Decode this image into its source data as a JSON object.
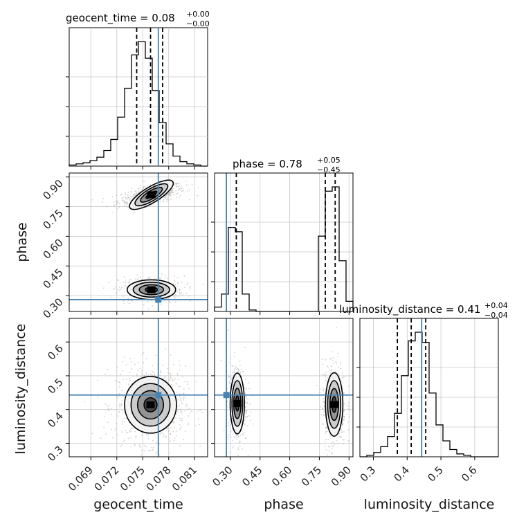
{
  "chart_data": {
    "type": "corner",
    "colors": {
      "truth": "#4682b4",
      "line": "#000000",
      "grid": "#c8c8c8",
      "samples": "#9a9a9a"
    },
    "parameters": [
      {
        "name": "geocent_time",
        "label": "geocent_time",
        "range": [
          0.0665,
          0.0825
        ],
        "ticks": [
          0.069,
          0.072,
          0.075,
          0.078,
          0.081
        ],
        "tick_labels": [
          "0.069",
          "0.072",
          "0.075",
          "0.078",
          "0.081"
        ],
        "truth": 0.0768,
        "title": {
          "text": "geocent_time = 0.08",
          "sup": "+0.00",
          "sub": "−0.00"
        },
        "quantiles": [
          0.0743,
          0.0759,
          0.0773
        ],
        "histogram": {
          "edges_start": 0.0665,
          "bin_width": 0.0008,
          "counts": [
            1,
            2,
            3,
            5,
            8,
            14,
            24,
            44,
            70,
            100,
            112,
            97,
            68,
            39,
            20,
            9,
            4,
            2,
            1,
            0
          ]
        }
      },
      {
        "name": "phase",
        "label": "phase",
        "range": [
          0.22,
          0.92
        ],
        "ticks": [
          0.3,
          0.45,
          0.6,
          0.75,
          0.9
        ],
        "tick_labels": [
          "0.30",
          "0.45",
          "0.60",
          "0.75",
          "0.90"
        ],
        "truth": 0.28,
        "title": {
          "text": "phase = 0.78",
          "sup": "+0.05",
          "sub": "−0.45"
        },
        "quantiles": [
          0.33,
          0.78,
          0.83
        ],
        "histogram": {
          "edges_start": 0.22,
          "bin_width": 0.035,
          "counts": [
            3,
            12,
            58,
            55,
            12,
            1,
            0,
            0,
            0,
            0,
            0,
            0,
            0,
            0,
            0,
            52,
            83,
            86,
            35,
            7
          ]
        }
      },
      {
        "name": "luminosity_distance",
        "label": "luminosity_distance",
        "range": [
          0.26,
          0.67
        ],
        "ticks": [
          0.3,
          0.4,
          0.5,
          0.6
        ],
        "tick_labels": [
          "0.3",
          "0.4",
          "0.5",
          "0.6"
        ],
        "truth": 0.443,
        "title": {
          "text": "luminosity_distance = 0.41",
          "sup": "+0.04",
          "sub": "−0.04"
        },
        "quantiles": [
          0.371,
          0.412,
          0.455
        ],
        "histogram": {
          "edges_start": 0.26,
          "bin_width": 0.0205,
          "counts": [
            0,
            1,
            3,
            7,
            14,
            30,
            56,
            80,
            86,
            79,
            44,
            22,
            11,
            5,
            2,
            1,
            0,
            0,
            0,
            0
          ]
        }
      }
    ],
    "pair_ticks": {
      "phase": [
        "0.90",
        "0.75",
        "0.60",
        "0.45",
        "0.30"
      ],
      "luminosity_distance": [
        "0.6",
        "0.5",
        "0.4",
        "0.3"
      ]
    },
    "blobs": [
      {
        "pair": "geocent_time|phase",
        "cx": 0.076,
        "cy": 0.81,
        "sx": 0.00145,
        "sy": 0.02,
        "rho": 0.55,
        "weight": 0.55
      },
      {
        "pair": "geocent_time|phase",
        "cx": 0.076,
        "cy": 0.33,
        "sx": 0.0014,
        "sy": 0.025,
        "rho": 0.0,
        "weight": 0.45
      },
      {
        "pair": "geocent_time|luminosity_distance",
        "cx": 0.0759,
        "cy": 0.414,
        "sx": 0.0015,
        "sy": 0.042,
        "rho": 0.0,
        "weight": 1.0
      },
      {
        "pair": "phase|luminosity_distance",
        "cx": 0.335,
        "cy": 0.418,
        "sx": 0.018,
        "sy": 0.045,
        "rho": 0.0,
        "weight": 0.45
      },
      {
        "pair": "phase|luminosity_distance",
        "cx": 0.825,
        "cy": 0.415,
        "sx": 0.022,
        "sy": 0.047,
        "rho": 0.0,
        "weight": 0.55
      }
    ],
    "contour_levels_sigma": [
      0.5,
      1.0,
      1.5,
      2.0
    ]
  }
}
